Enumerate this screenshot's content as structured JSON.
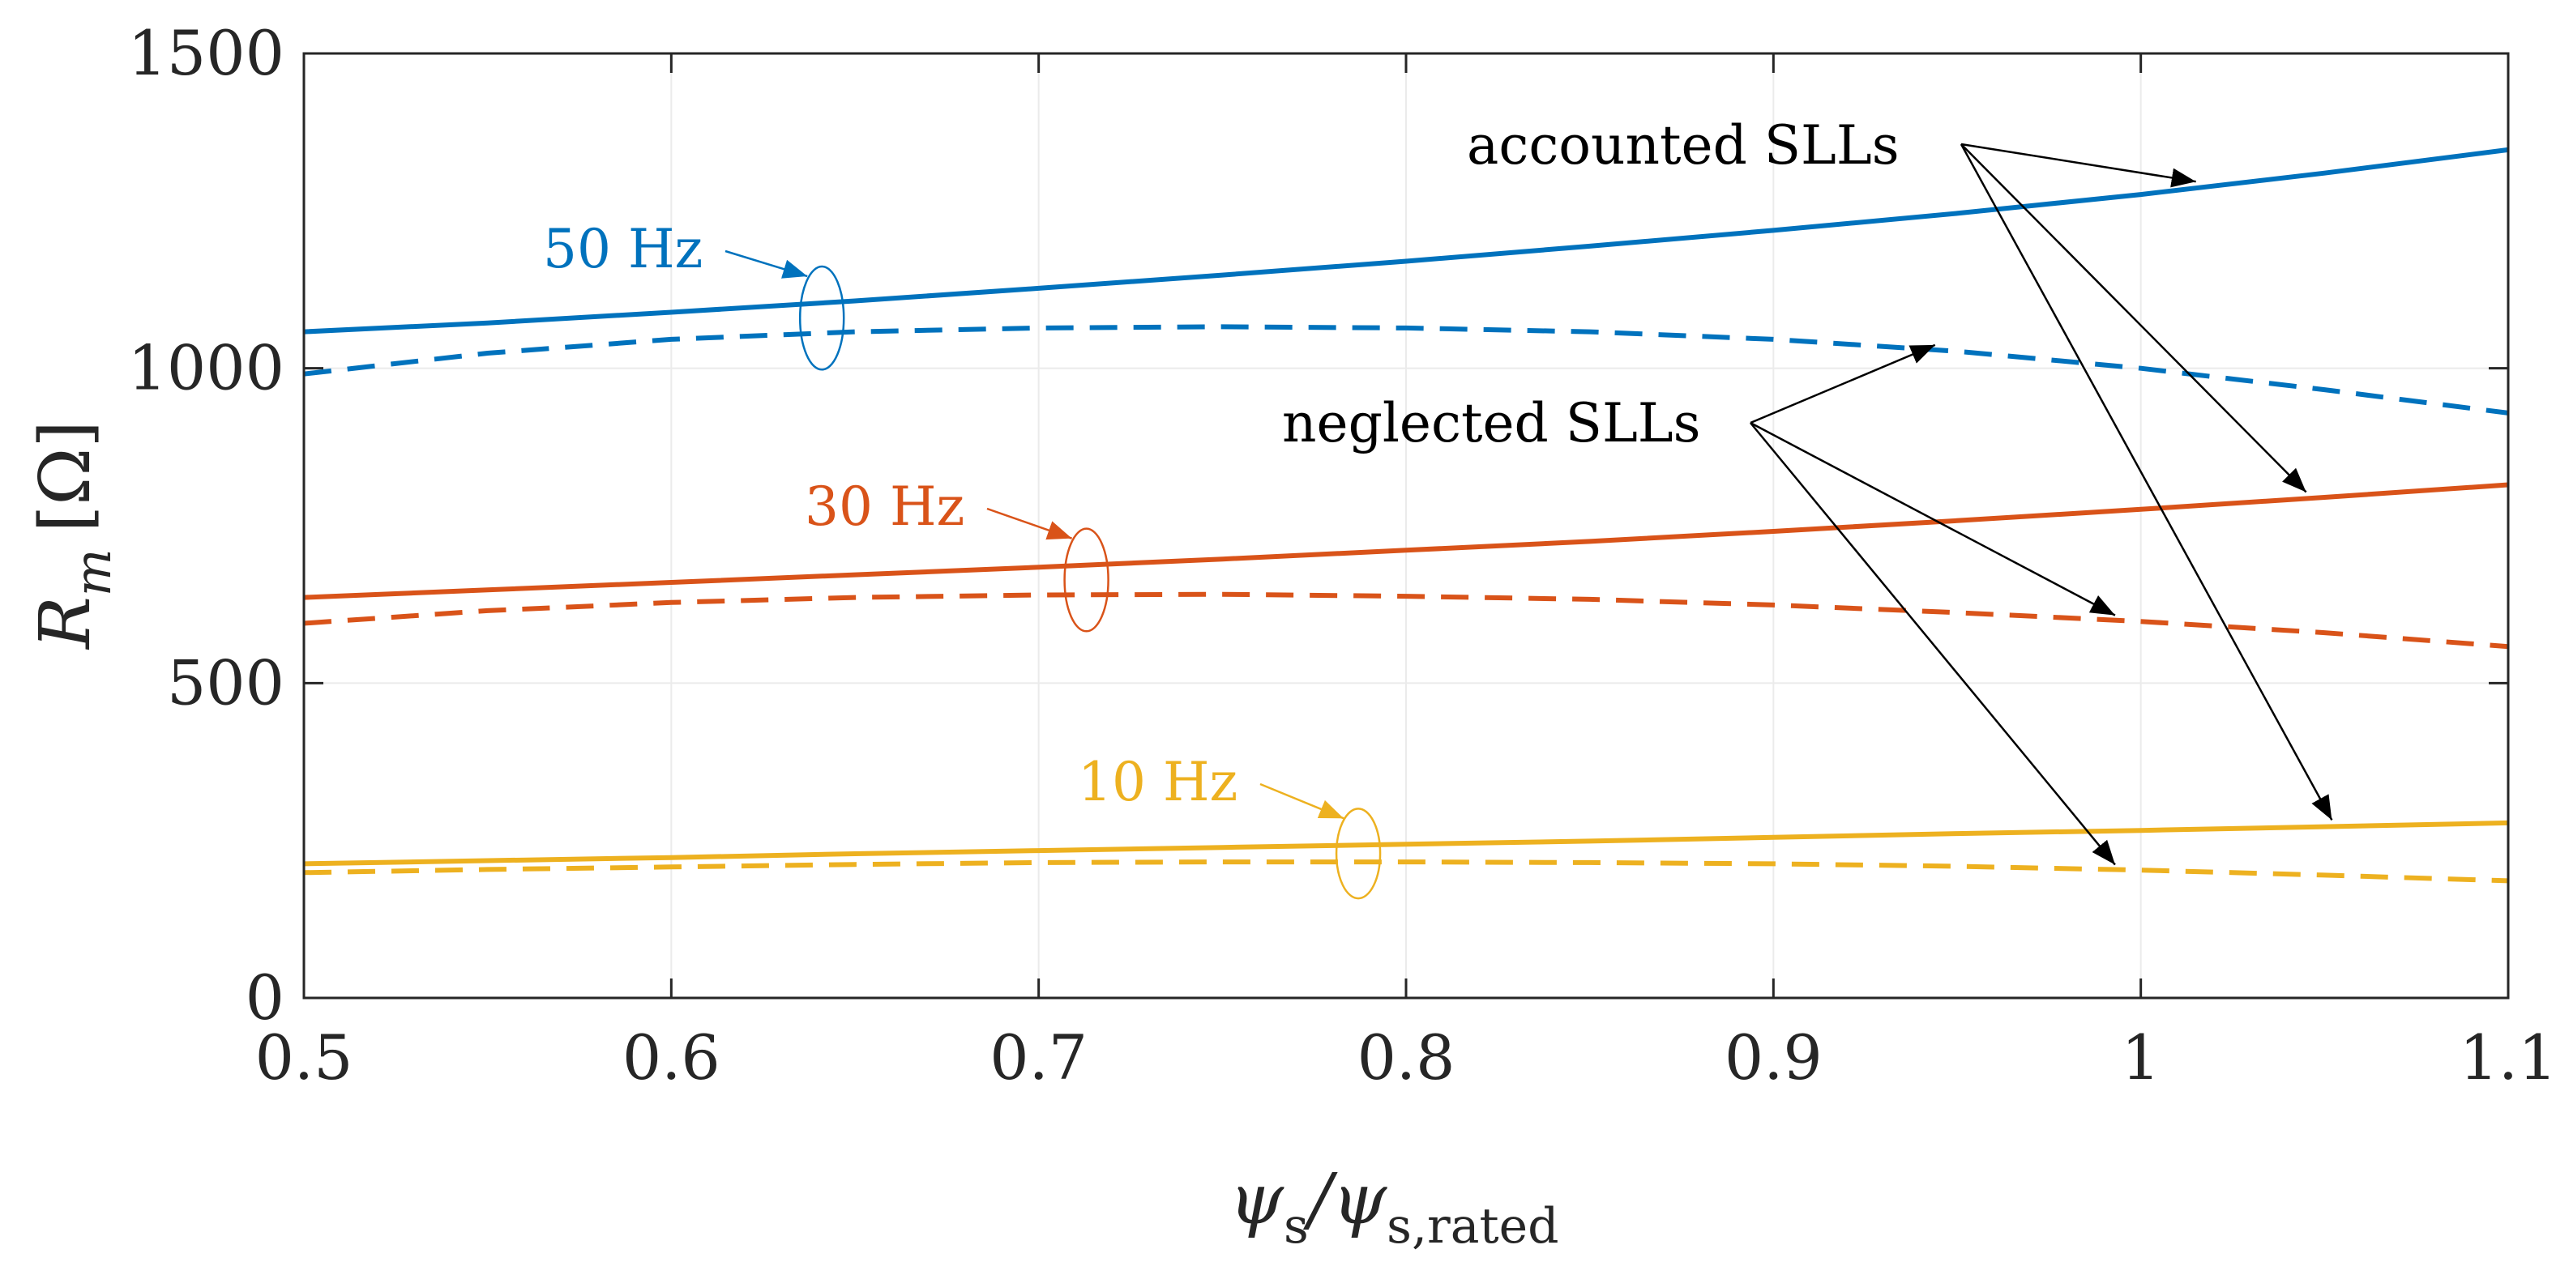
{
  "chart_data": {
    "type": "line",
    "title": "",
    "xlabel": {
      "main": "ψ",
      "sub1": "s",
      "slash": "/ψ",
      "sub2": "s,rated"
    },
    "ylabel": {
      "main": "R",
      "sub": "m",
      "unit": "[Ω]"
    },
    "xlim": [
      0.5,
      1.1
    ],
    "ylim": [
      0,
      1500
    ],
    "xticks": [
      "0.5",
      "0.6",
      "0.7",
      "0.8",
      "0.9",
      "1",
      "1.1"
    ],
    "yticks": [
      "0",
      "500",
      "1000",
      "1500"
    ],
    "grid": true,
    "x": [
      0.5,
      0.55,
      0.6,
      0.65,
      0.7,
      0.75,
      0.8,
      0.85,
      0.9,
      0.95,
      1.0,
      1.05,
      1.1
    ],
    "series": [
      {
        "group": "50 Hz",
        "style": "solid",
        "color": "#0072BD",
        "values": [
          1058,
          1072,
          1089,
          1107,
          1127,
          1148,
          1170,
          1194,
          1219,
          1246,
          1276,
          1310,
          1347
        ]
      },
      {
        "group": "50 Hz",
        "style": "dashed",
        "color": "#0072BD",
        "values": [
          991,
          1024,
          1046,
          1058,
          1064,
          1066,
          1064,
          1058,
          1046,
          1027,
          1000,
          966,
          929
        ]
      },
      {
        "group": "30 Hz",
        "style": "solid",
        "color": "#D95319",
        "values": [
          636,
          648,
          660,
          672,
          684,
          697,
          711,
          725,
          741,
          758,
          776,
          795,
          815
        ]
      },
      {
        "group": "30 Hz",
        "style": "dashed",
        "color": "#D95319",
        "values": [
          595,
          615,
          628,
          636,
          640,
          641,
          638,
          633,
          624,
          612,
          598,
          580,
          558
        ]
      },
      {
        "group": "10 Hz",
        "style": "solid",
        "color": "#EDB120",
        "values": [
          213,
          218,
          223,
          229,
          234,
          239,
          244,
          249,
          255,
          261,
          266,
          272,
          278
        ]
      },
      {
        "group": "10 Hz",
        "style": "dashed",
        "color": "#EDB120",
        "values": [
          199,
          204,
          208,
          212,
          215,
          216,
          216,
          215,
          213,
          209,
          203,
          195,
          186
        ]
      }
    ],
    "annotations": {
      "accounted": "accounted SLLs",
      "neglected": "neglected SLLs",
      "hz50": "50 Hz",
      "hz30": "30 Hz",
      "hz10": "10 Hz"
    }
  }
}
